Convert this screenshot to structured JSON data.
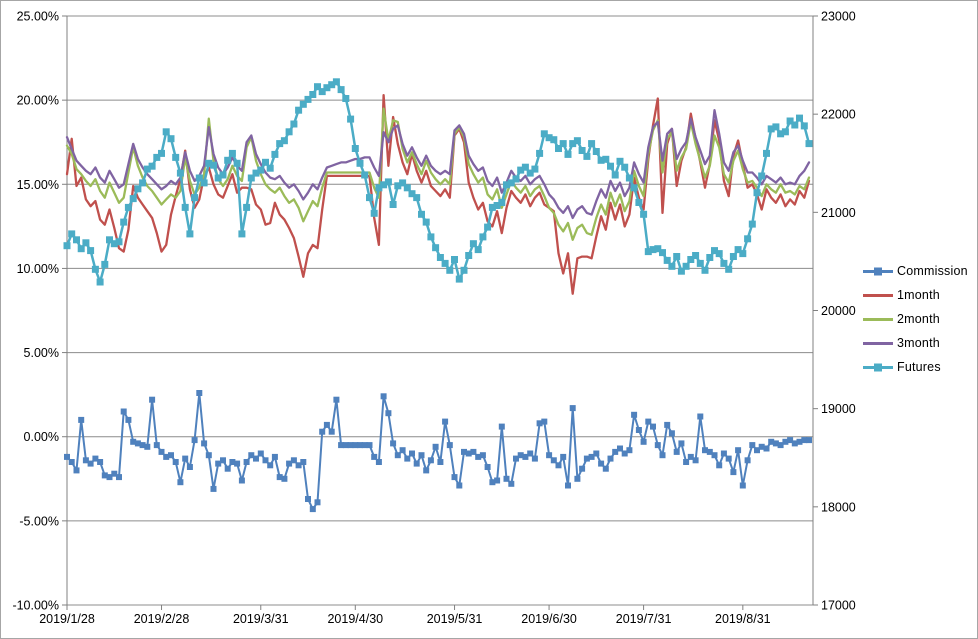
{
  "chart_data": {
    "type": "line",
    "title": "",
    "grid": "horizontal",
    "legend_position": "right",
    "axes": {
      "left": {
        "min": -10,
        "max": 25,
        "step": 5,
        "format": "percent",
        "tick_labels": [
          "25.00%",
          "20.00%",
          "15.00%",
          "10.00%",
          "5.00%",
          "0.00%",
          "-5.00%",
          "-10.00%"
        ]
      },
      "right": {
        "min": 17000,
        "max": 23000,
        "step": 1000,
        "tick_labels": [
          "23000",
          "22000",
          "21000",
          "20000",
          "19000",
          "18000",
          "17000"
        ]
      },
      "x": {
        "tick_labels": [
          "2019/1/28",
          "2019/2/28",
          "2019/3/31",
          "2019/4/30",
          "2019/5/31",
          "2019/6/30",
          "2019/7/31",
          "2019/8/31"
        ],
        "tick_indices": [
          0,
          20,
          41,
          61,
          82,
          102,
          122,
          143
        ]
      }
    },
    "colors": {
      "commission": "#4F81BD",
      "one_month": "#C0504D",
      "two_month": "#9BBB59",
      "three_month": "#8064A2",
      "futures": "#4BACC6",
      "gridline": "#8c8c8c",
      "axis": "#808080"
    },
    "series": [
      {
        "name": "Commission",
        "axis": "left",
        "color": "#4F81BD",
        "marker": "square",
        "marker_size": 6,
        "line_width": 2,
        "values": [
          -1.2,
          -1.5,
          -2.0,
          1.0,
          -1.4,
          -1.6,
          -1.3,
          -1.5,
          -2.3,
          -2.4,
          -2.2,
          -2.4,
          1.5,
          1.0,
          -0.3,
          -0.4,
          -0.5,
          -0.6,
          2.2,
          -0.5,
          -0.9,
          -1.2,
          -1.1,
          -1.5,
          -2.7,
          -1.3,
          -1.8,
          -0.2,
          2.6,
          -0.4,
          -1.1,
          -3.1,
          -1.6,
          -1.4,
          -1.9,
          -1.5,
          -1.6,
          -2.6,
          -1.5,
          -1.1,
          -1.3,
          -1.0,
          -1.4,
          -1.7,
          -1.2,
          -2.4,
          -2.5,
          -1.6,
          -1.4,
          -1.7,
          -1.5,
          -3.7,
          -4.3,
          -3.9,
          0.3,
          0.7,
          0.3,
          2.2,
          -0.5,
          -0.5,
          -0.5,
          -0.5,
          -0.5,
          -0.5,
          -0.5,
          -1.2,
          -1.5,
          2.4,
          1.4,
          -0.4,
          -1.1,
          -0.8,
          -1.3,
          -1.0,
          -1.6,
          -1.1,
          -2.0,
          -1.4,
          -0.6,
          -1.5,
          0.9,
          -0.5,
          -2.4,
          -2.9,
          -0.9,
          -1.0,
          -0.9,
          -1.2,
          -1.1,
          -1.8,
          -2.7,
          -2.6,
          0.6,
          -2.5,
          -2.8,
          -1.3,
          -1.1,
          -1.2,
          -1.0,
          -1.3,
          0.8,
          0.9,
          -1.1,
          -1.4,
          -1.7,
          -1.2,
          -2.9,
          1.7,
          -2.5,
          -1.9,
          -1.3,
          -1.2,
          -1.0,
          -1.6,
          -1.9,
          -1.3,
          -0.9,
          -0.7,
          -1.0,
          -0.8,
          1.3,
          0.4,
          -0.3,
          0.9,
          0.6,
          -0.5,
          -1.1,
          0.7,
          0.2,
          -0.9,
          -0.4,
          -1.5,
          -1.2,
          -1.4,
          1.2,
          -0.8,
          -0.9,
          -1.1,
          -1.7,
          -1.0,
          -1.3,
          -2.1,
          -0.8,
          -2.9,
          -1.4,
          -0.5,
          -0.8,
          -0.6,
          -0.7,
          -0.3,
          -0.4,
          -0.5,
          -0.3,
          -0.2,
          -0.4,
          -0.3,
          -0.2,
          -0.2
        ]
      },
      {
        "name": "1month",
        "axis": "left",
        "color": "#C0504D",
        "marker": "none",
        "marker_size": 0,
        "line_width": 2.3,
        "values": [
          15.6,
          17.7,
          14.9,
          15.4,
          14.1,
          13.7,
          14.0,
          12.9,
          12.6,
          13.5,
          12.4,
          11.2,
          11.0,
          12.3,
          14.9,
          14.2,
          13.8,
          13.4,
          13.0,
          12.1,
          11.0,
          11.4,
          13.2,
          14.3,
          15.3,
          17.0,
          14.7,
          13.6,
          14.1,
          15.5,
          16.0,
          15.0,
          14.4,
          14.2,
          14.9,
          15.6,
          14.5,
          14.8,
          14.8,
          14.7,
          13.8,
          13.5,
          12.6,
          12.7,
          13.9,
          13.2,
          12.9,
          12.4,
          11.8,
          10.7,
          9.5,
          10.9,
          11.4,
          11.2,
          13.5,
          15.5,
          15.5,
          15.5,
          15.5,
          15.5,
          15.5,
          15.5,
          15.5,
          15.5,
          15.5,
          13.0,
          11.4,
          20.3,
          16.1,
          19.0,
          17.4,
          16.3,
          15.6,
          16.8,
          15.8,
          15.1,
          15.8,
          14.9,
          14.6,
          14.3,
          14.7,
          14.2,
          17.9,
          18.3,
          17.5,
          15.1,
          14.2,
          13.5,
          13.9,
          12.8,
          12.5,
          13.4,
          12.1,
          13.6,
          14.6,
          14.2,
          13.9,
          14.4,
          13.7,
          14.2,
          14.5,
          13.8,
          13.6,
          13.4,
          10.9,
          9.7,
          10.9,
          8.5,
          10.6,
          10.7,
          10.7,
          10.6,
          11.9,
          13.1,
          12.3,
          13.9,
          12.9,
          13.8,
          12.5,
          13.2,
          15.4,
          14.2,
          13.5,
          16.5,
          18.5,
          20.1,
          13.3,
          17.4,
          18.3,
          14.9,
          16.4,
          17.2,
          19.2,
          17.7,
          16.3,
          14.8,
          16.2,
          18.8,
          17.6,
          15.2,
          14.3,
          16.7,
          17.6,
          16.2,
          14.8,
          15.0,
          14.4,
          13.5,
          14.7,
          14.2,
          13.9,
          14.4,
          13.7,
          14.1,
          13.8,
          14.6,
          14.2,
          15.2
        ]
      },
      {
        "name": "2month",
        "axis": "left",
        "color": "#9BBB59",
        "marker": "none",
        "marker_size": 0,
        "line_width": 2.3,
        "values": [
          17.3,
          16.8,
          15.9,
          15.6,
          15.2,
          14.9,
          15.3,
          14.6,
          14.2,
          15.1,
          14.5,
          13.9,
          14.2,
          15.7,
          17.2,
          16.1,
          15.4,
          14.9,
          14.6,
          14.2,
          13.8,
          14.1,
          14.4,
          14.2,
          14.6,
          16.6,
          15.2,
          14.4,
          14.8,
          15.6,
          18.9,
          16.4,
          15.3,
          14.9,
          15.3,
          16.1,
          15.5,
          15.2,
          17.2,
          17.8,
          16.4,
          15.6,
          15.0,
          14.7,
          14.5,
          14.8,
          14.3,
          13.9,
          14.1,
          13.6,
          12.8,
          13.4,
          14.0,
          13.7,
          14.8,
          15.7,
          15.7,
          15.7,
          15.7,
          15.7,
          15.7,
          15.7,
          15.7,
          15.7,
          15.7,
          14.8,
          14.2,
          19.5,
          17.6,
          18.8,
          18.7,
          17.1,
          16.3,
          16.9,
          16.2,
          15.6,
          16.4,
          15.7,
          15.3,
          15.0,
          15.3,
          15.0,
          18.0,
          18.4,
          17.8,
          16.2,
          15.6,
          15.1,
          15.4,
          14.4,
          14.1,
          14.7,
          13.6,
          14.4,
          15.2,
          14.8,
          14.5,
          14.9,
          14.3,
          14.7,
          14.9,
          14.3,
          13.6,
          13.3,
          12.6,
          12.2,
          12.7,
          11.7,
          12.4,
          12.6,
          12.1,
          12.0,
          13.0,
          13.8,
          13.2,
          14.5,
          13.7,
          14.4,
          13.4,
          14.0,
          15.8,
          14.9,
          14.3,
          16.8,
          18.2,
          18.8,
          15.7,
          17.7,
          18.1,
          15.8,
          16.6,
          17.1,
          18.7,
          17.4,
          16.4,
          15.4,
          16.1,
          17.9,
          17.2,
          15.6,
          15.1,
          16.4,
          17.0,
          15.9,
          15.1,
          15.2,
          14.8,
          14.3,
          15.0,
          14.7,
          14.5,
          15.0,
          14.5,
          14.6,
          14.4,
          14.9,
          14.7,
          15.4
        ]
      },
      {
        "name": "3month",
        "axis": "left",
        "color": "#8064A2",
        "marker": "none",
        "marker_size": 0,
        "line_width": 2.3,
        "values": [
          17.8,
          17.1,
          16.4,
          16.1,
          15.8,
          15.6,
          16.0,
          15.4,
          15.1,
          15.8,
          15.3,
          14.8,
          15.0,
          16.2,
          17.4,
          16.5,
          16.0,
          15.6,
          15.3,
          15.0,
          14.7,
          14.9,
          15.2,
          15.0,
          15.4,
          16.9,
          15.8,
          15.2,
          15.5,
          16.1,
          18.4,
          16.8,
          16.0,
          15.6,
          16.0,
          16.6,
          16.1,
          15.8,
          17.5,
          17.9,
          16.8,
          16.2,
          15.7,
          15.4,
          15.3,
          15.5,
          15.1,
          14.8,
          15.0,
          14.6,
          14.1,
          14.5,
          15.0,
          14.7,
          15.4,
          16.0,
          16.1,
          16.2,
          16.3,
          16.3,
          16.4,
          16.5,
          16.5,
          16.6,
          16.6,
          16.0,
          15.5,
          18.1,
          17.5,
          18.3,
          18.5,
          17.4,
          16.7,
          17.2,
          16.6,
          16.1,
          16.7,
          16.1,
          15.8,
          15.6,
          15.8,
          15.6,
          18.2,
          18.5,
          18.0,
          16.7,
          16.2,
          15.8,
          16.0,
          15.2,
          14.9,
          15.4,
          14.5,
          15.1,
          15.8,
          15.4,
          15.2,
          15.5,
          15.0,
          15.3,
          15.5,
          15.0,
          14.4,
          14.1,
          13.6,
          13.3,
          13.7,
          13.0,
          13.5,
          13.7,
          13.3,
          13.2,
          14.0,
          14.7,
          14.2,
          15.2,
          14.6,
          15.1,
          14.3,
          14.8,
          16.3,
          15.6,
          15.1,
          17.2,
          18.4,
          18.7,
          16.4,
          18.0,
          18.3,
          16.5,
          17.1,
          17.5,
          18.9,
          17.8,
          17.0,
          16.2,
          16.7,
          19.4,
          18.0,
          16.3,
          15.8,
          16.9,
          17.3,
          16.4,
          15.7,
          15.7,
          15.4,
          15.0,
          15.5,
          15.3,
          15.1,
          15.4,
          15.0,
          15.1,
          15.0,
          15.5,
          15.8,
          16.3
        ]
      },
      {
        "name": "Futures",
        "axis": "right",
        "color": "#4BACC6",
        "marker": "square",
        "marker_size": 7,
        "line_width": 2.5,
        "values": [
          20660,
          20780,
          20720,
          20630,
          20690,
          20610,
          20420,
          20290,
          20470,
          20720,
          20680,
          20700,
          20900,
          21050,
          21140,
          21240,
          21300,
          21440,
          21470,
          21560,
          21600,
          21820,
          21750,
          21560,
          21400,
          21050,
          20780,
          21150,
          21350,
          21300,
          21500,
          21480,
          21350,
          21380,
          21530,
          21600,
          21500,
          20780,
          21050,
          21350,
          21400,
          21430,
          21510,
          21450,
          21590,
          21700,
          21730,
          21820,
          21900,
          22040,
          22100,
          22150,
          22200,
          22280,
          22230,
          22270,
          22300,
          22330,
          22250,
          22160,
          21950,
          21650,
          21500,
          21380,
          21150,
          20990,
          21250,
          21280,
          21310,
          21080,
          21270,
          21300,
          21250,
          21190,
          21150,
          20980,
          20900,
          20750,
          20640,
          20540,
          20480,
          20410,
          20520,
          20320,
          20410,
          20560,
          20680,
          20620,
          20750,
          20850,
          21050,
          21070,
          21100,
          21280,
          21300,
          21340,
          21430,
          21460,
          21400,
          21440,
          21600,
          21800,
          21760,
          21740,
          21650,
          21700,
          21590,
          21700,
          21730,
          21630,
          21570,
          21700,
          21620,
          21530,
          21540,
          21470,
          21380,
          21520,
          21460,
          21350,
          21250,
          21100,
          20980,
          20600,
          20620,
          20630,
          20590,
          20510,
          20450,
          20550,
          20400,
          20450,
          20520,
          20560,
          20480,
          20410,
          20540,
          20610,
          20580,
          20480,
          20420,
          20550,
          20620,
          20580,
          20730,
          20880,
          21200,
          21370,
          21600,
          21850,
          21870,
          21800,
          21820,
          21930,
          21890,
          21960,
          21880,
          21700
        ]
      }
    ]
  },
  "legend": {
    "items": [
      "Commission",
      "1month",
      "2month",
      "3month",
      "Futures"
    ]
  }
}
